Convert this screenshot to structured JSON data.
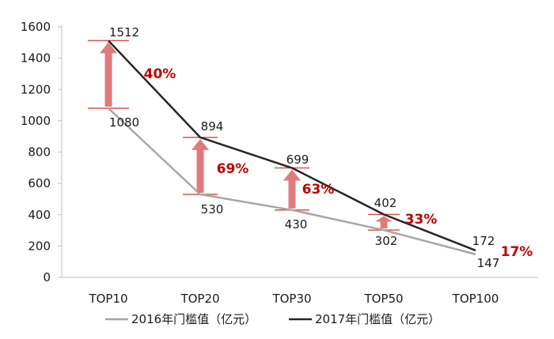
{
  "chart_data": {
    "type": "line",
    "categories": [
      "TOP10",
      "TOP20",
      "TOP30",
      "TOP50",
      "TOP100"
    ],
    "series": [
      {
        "name": "2016年门槛值（亿元）",
        "values": [
          1080,
          530,
          430,
          302,
          147
        ],
        "color": "#a6a6a6"
      },
      {
        "name": "2017年门槛值（亿元）",
        "values": [
          1512,
          894,
          699,
          402,
          172
        ],
        "color": "#262626"
      }
    ],
    "growth_labels": [
      "40%",
      "69%",
      "63%",
      "33%",
      "17%"
    ],
    "ylim": [
      0,
      1600
    ],
    "yticks": [
      0,
      200,
      400,
      600,
      800,
      1000,
      1200,
      1400,
      1600
    ],
    "grid": false,
    "legend": "bottom",
    "colors": {
      "arrow": "#e07b7b",
      "bracket": "#d9534f",
      "pct_text": "#c00000"
    },
    "title": "",
    "xlabel": "",
    "ylabel": ""
  }
}
